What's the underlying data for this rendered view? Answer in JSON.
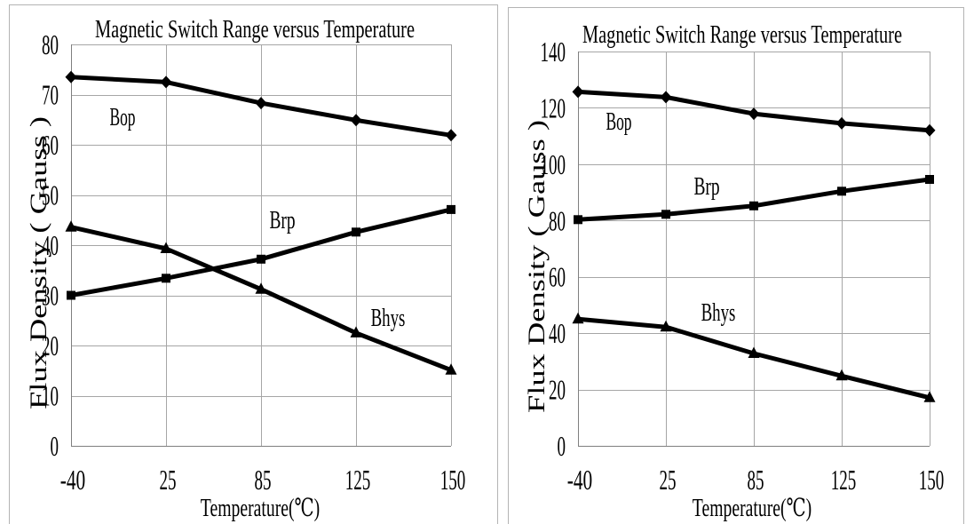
{
  "chart_data": [
    {
      "type": "line",
      "title": "Magnetic Switch Range versus Temperature",
      "xlabel": "Temperature(℃)",
      "ylabel": "Flux Density ( Gauss )",
      "categories": [
        "-40",
        "25",
        "85",
        "125",
        "150"
      ],
      "ylim": [
        0,
        80
      ],
      "yticks": [
        0,
        10,
        20,
        30,
        40,
        50,
        60,
        70,
        80
      ],
      "grid": true,
      "line_color": "#000000",
      "grid_color": "#a6a6a6",
      "series": [
        {
          "name": "Bop",
          "marker": "diamond",
          "values": [
            73.5,
            72.5,
            68.3,
            64.9,
            61.9
          ]
        },
        {
          "name": "Brp",
          "marker": "square",
          "values": [
            30.0,
            33.4,
            37.2,
            42.6,
            47.1
          ]
        },
        {
          "name": "Bhys",
          "marker": "triangle",
          "values": [
            43.6,
            39.3,
            31.2,
            22.5,
            15.1
          ]
        }
      ]
    },
    {
      "type": "line",
      "title": "Magnetic Switch Range versus Temperature",
      "xlabel": "Temperature(℃)",
      "ylabel": "Flux Density ( Gauss )",
      "categories": [
        "-40",
        "25",
        "85",
        "125",
        "150"
      ],
      "ylim": [
        0,
        140
      ],
      "yticks": [
        0,
        20,
        40,
        60,
        80,
        100,
        120,
        140
      ],
      "grid": true,
      "line_color": "#000000",
      "grid_color": "#a6a6a6",
      "series": [
        {
          "name": "Bop",
          "marker": "diamond",
          "values": [
            125.7,
            123.8,
            117.9,
            114.5,
            112.0
          ]
        },
        {
          "name": "Brp",
          "marker": "square",
          "values": [
            80.3,
            82.2,
            85.2,
            90.4,
            94.6
          ]
        },
        {
          "name": "Bhys",
          "marker": "triangle",
          "values": [
            45.0,
            42.2,
            32.8,
            24.8,
            17.1
          ]
        }
      ]
    }
  ]
}
